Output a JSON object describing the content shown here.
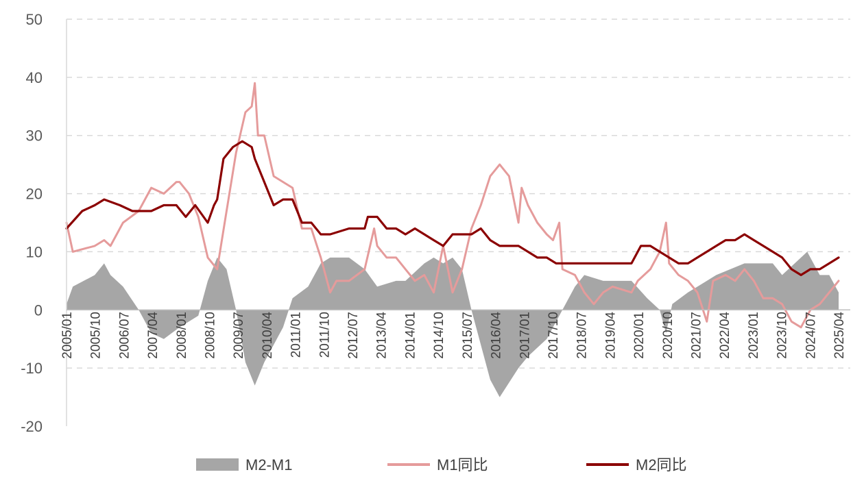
{
  "chart_data": {
    "type": "line",
    "yticks": [
      "50",
      "40",
      "30",
      "20",
      "10",
      "0",
      "-10",
      "-20"
    ],
    "ylim": [
      -20,
      50
    ],
    "grid": true,
    "legend_position": "bottom",
    "x_labels": [
      "2005/01",
      "2005/10",
      "2006/07",
      "2007/04",
      "2008/01",
      "2008/10",
      "2009/07",
      "2010/04",
      "2011/01",
      "2011/10",
      "2012/07",
      "2013/04",
      "2014/01",
      "2014/10",
      "2015/07",
      "2016/04",
      "2017/01",
      "2017/10",
      "2018/07",
      "2019/04",
      "2020/01",
      "2020/10",
      "2021/07",
      "2022/04",
      "2023/01",
      "2023/10",
      "2024/07",
      "2025/04"
    ],
    "series": [
      {
        "name": "M2-M1",
        "kind": "area",
        "color": "#a6a6a6",
        "points": [
          [
            "2005/01",
            1
          ],
          [
            "2005/03",
            4
          ],
          [
            "2005/10",
            6
          ],
          [
            "2006/01",
            8
          ],
          [
            "2006/03",
            6
          ],
          [
            "2006/07",
            4
          ],
          [
            "2006/12",
            0
          ],
          [
            "2007/04",
            -4
          ],
          [
            "2007/08",
            -5
          ],
          [
            "2008/01",
            -3
          ],
          [
            "2008/07",
            -1
          ],
          [
            "2008/10",
            5
          ],
          [
            "2009/01",
            9
          ],
          [
            "2009/04",
            7
          ],
          [
            "2009/07",
            0
          ],
          [
            "2009/10",
            -9
          ],
          [
            "2010/01",
            -13
          ],
          [
            "2010/04",
            -9
          ],
          [
            "2010/10",
            -3
          ],
          [
            "2011/01",
            2
          ],
          [
            "2011/06",
            4
          ],
          [
            "2011/10",
            8
          ],
          [
            "2012/01",
            9
          ],
          [
            "2012/07",
            9
          ],
          [
            "2012/12",
            7
          ],
          [
            "2013/04",
            4
          ],
          [
            "2013/10",
            5
          ],
          [
            "2014/01",
            5
          ],
          [
            "2014/07",
            8
          ],
          [
            "2014/10",
            9
          ],
          [
            "2015/01",
            8
          ],
          [
            "2015/04",
            9
          ],
          [
            "2015/07",
            7
          ],
          [
            "2015/10",
            0
          ],
          [
            "2016/04",
            -12
          ],
          [
            "2016/07",
            -15
          ],
          [
            "2017/01",
            -10
          ],
          [
            "2017/04",
            -8
          ],
          [
            "2017/10",
            -5
          ],
          [
            "2018/01",
            -2
          ],
          [
            "2018/04",
            1
          ],
          [
            "2018/07",
            4
          ],
          [
            "2018/10",
            6
          ],
          [
            "2019/04",
            5
          ],
          [
            "2020/01",
            5
          ],
          [
            "2020/06",
            2
          ],
          [
            "2020/10",
            0
          ],
          [
            "2020/12",
            -4
          ],
          [
            "2021/02",
            1
          ],
          [
            "2021/07",
            3
          ],
          [
            "2022/01",
            5
          ],
          [
            "2022/04",
            6
          ],
          [
            "2023/01",
            8
          ],
          [
            "2023/06",
            8
          ],
          [
            "2023/10",
            8
          ],
          [
            "2024/01",
            6
          ],
          [
            "2024/07",
            9
          ],
          [
            "2024/09",
            10
          ],
          [
            "2025/01",
            6
          ],
          [
            "2025/04",
            6
          ],
          [
            "2025/07",
            3
          ]
        ]
      },
      {
        "name": "M1同比",
        "kind": "line",
        "color": "#e59b9b",
        "points": [
          [
            "2005/01",
            15
          ],
          [
            "2005/03",
            10
          ],
          [
            "2005/10",
            11
          ],
          [
            "2006/01",
            12
          ],
          [
            "2006/03",
            11
          ],
          [
            "2006/07",
            15
          ],
          [
            "2006/12",
            17
          ],
          [
            "2007/04",
            21
          ],
          [
            "2007/08",
            20
          ],
          [
            "2007/12",
            22
          ],
          [
            "2008/01",
            22
          ],
          [
            "2008/04",
            20
          ],
          [
            "2008/07",
            16
          ],
          [
            "2008/10",
            9
          ],
          [
            "2009/01",
            7
          ],
          [
            "2009/04",
            17
          ],
          [
            "2009/07",
            27
          ],
          [
            "2009/10",
            34
          ],
          [
            "2009/12",
            35
          ],
          [
            "2010/01",
            39
          ],
          [
            "2010/02",
            30
          ],
          [
            "2010/04",
            30
          ],
          [
            "2010/07",
            23
          ],
          [
            "2010/10",
            22
          ],
          [
            "2011/01",
            21
          ],
          [
            "2011/04",
            14
          ],
          [
            "2011/07",
            14
          ],
          [
            "2011/10",
            9
          ],
          [
            "2012/01",
            3
          ],
          [
            "2012/03",
            5
          ],
          [
            "2012/07",
            5
          ],
          [
            "2012/12",
            7
          ],
          [
            "2013/03",
            14
          ],
          [
            "2013/04",
            11
          ],
          [
            "2013/07",
            9
          ],
          [
            "2013/10",
            9
          ],
          [
            "2014/01",
            7
          ],
          [
            "2014/04",
            5
          ],
          [
            "2014/07",
            6
          ],
          [
            "2014/10",
            3
          ],
          [
            "2015/01",
            11
          ],
          [
            "2015/04",
            3
          ],
          [
            "2015/07",
            7
          ],
          [
            "2015/10",
            14
          ],
          [
            "2016/01",
            18
          ],
          [
            "2016/04",
            23
          ],
          [
            "2016/07",
            25
          ],
          [
            "2016/10",
            23
          ],
          [
            "2017/01",
            15
          ],
          [
            "2017/02",
            21
          ],
          [
            "2017/04",
            18
          ],
          [
            "2017/07",
            15
          ],
          [
            "2017/10",
            13
          ],
          [
            "2017/12",
            12
          ],
          [
            "2018/02",
            15
          ],
          [
            "2018/03",
            7
          ],
          [
            "2018/07",
            6
          ],
          [
            "2018/10",
            3
          ],
          [
            "2019/01",
            1
          ],
          [
            "2019/04",
            3
          ],
          [
            "2019/07",
            4
          ],
          [
            "2020/01",
            3
          ],
          [
            "2020/03",
            5
          ],
          [
            "2020/07",
            7
          ],
          [
            "2020/10",
            10
          ],
          [
            "2020/12",
            15
          ],
          [
            "2021/01",
            8
          ],
          [
            "2021/04",
            6
          ],
          [
            "2021/07",
            5
          ],
          [
            "2021/10",
            3
          ],
          [
            "2022/01",
            -2
          ],
          [
            "2022/03",
            5
          ],
          [
            "2022/07",
            6
          ],
          [
            "2022/10",
            5
          ],
          [
            "2023/01",
            7
          ],
          [
            "2023/04",
            5
          ],
          [
            "2023/07",
            2
          ],
          [
            "2023/10",
            2
          ],
          [
            "2024/01",
            1
          ],
          [
            "2024/04",
            -2
          ],
          [
            "2024/07",
            -3
          ],
          [
            "2024/10",
            0
          ],
          [
            "2025/01",
            1
          ],
          [
            "2025/04",
            3
          ],
          [
            "2025/07",
            5
          ]
        ]
      },
      {
        "name": "M2同比",
        "kind": "line",
        "color": "#8b0000",
        "points": [
          [
            "2005/01",
            14
          ],
          [
            "2005/06",
            17
          ],
          [
            "2005/10",
            18
          ],
          [
            "2006/01",
            19
          ],
          [
            "2006/06",
            18
          ],
          [
            "2006/10",
            17
          ],
          [
            "2007/01",
            17
          ],
          [
            "2007/04",
            17
          ],
          [
            "2007/08",
            18
          ],
          [
            "2007/12",
            18
          ],
          [
            "2008/03",
            16
          ],
          [
            "2008/06",
            18
          ],
          [
            "2008/10",
            15
          ],
          [
            "2008/12",
            18
          ],
          [
            "2009/01",
            19
          ],
          [
            "2009/03",
            26
          ],
          [
            "2009/06",
            28
          ],
          [
            "2009/09",
            29
          ],
          [
            "2009/12",
            28
          ],
          [
            "2010/01",
            26
          ],
          [
            "2010/04",
            22
          ],
          [
            "2010/07",
            18
          ],
          [
            "2010/10",
            19
          ],
          [
            "2011/01",
            19
          ],
          [
            "2011/04",
            15
          ],
          [
            "2011/07",
            15
          ],
          [
            "2011/10",
            13
          ],
          [
            "2012/01",
            13
          ],
          [
            "2012/07",
            14
          ],
          [
            "2012/12",
            14
          ],
          [
            "2013/01",
            16
          ],
          [
            "2013/04",
            16
          ],
          [
            "2013/07",
            14
          ],
          [
            "2013/10",
            14
          ],
          [
            "2014/01",
            13
          ],
          [
            "2014/04",
            14
          ],
          [
            "2014/07",
            13
          ],
          [
            "2014/10",
            12
          ],
          [
            "2015/01",
            11
          ],
          [
            "2015/04",
            13
          ],
          [
            "2015/07",
            13
          ],
          [
            "2015/10",
            13
          ],
          [
            "2016/01",
            14
          ],
          [
            "2016/04",
            12
          ],
          [
            "2016/07",
            11
          ],
          [
            "2016/10",
            11
          ],
          [
            "2017/01",
            11
          ],
          [
            "2017/04",
            10
          ],
          [
            "2017/07",
            9
          ],
          [
            "2017/10",
            9
          ],
          [
            "2018/01",
            8
          ],
          [
            "2018/07",
            8
          ],
          [
            "2019/01",
            8
          ],
          [
            "2019/07",
            8
          ],
          [
            "2020/01",
            8
          ],
          [
            "2020/04",
            11
          ],
          [
            "2020/07",
            11
          ],
          [
            "2020/10",
            10
          ],
          [
            "2021/01",
            9
          ],
          [
            "2021/04",
            8
          ],
          [
            "2021/07",
            8
          ],
          [
            "2021/10",
            9
          ],
          [
            "2022/01",
            10
          ],
          [
            "2022/04",
            11
          ],
          [
            "2022/07",
            12
          ],
          [
            "2022/10",
            12
          ],
          [
            "2023/01",
            13
          ],
          [
            "2023/04",
            12
          ],
          [
            "2023/07",
            11
          ],
          [
            "2023/10",
            10
          ],
          [
            "2024/01",
            9
          ],
          [
            "2024/04",
            7
          ],
          [
            "2024/07",
            6
          ],
          [
            "2024/10",
            7
          ],
          [
            "2025/01",
            7
          ],
          [
            "2025/04",
            8
          ],
          [
            "2025/07",
            9
          ]
        ]
      }
    ]
  },
  "legend": {
    "items": [
      {
        "label": "M2-M1",
        "color": "#a6a6a6",
        "swatch": "area"
      },
      {
        "label": "M1同比",
        "color": "#e59b9b",
        "swatch": "line"
      },
      {
        "label": "M2同比",
        "color": "#8b0000",
        "swatch": "line"
      }
    ]
  }
}
